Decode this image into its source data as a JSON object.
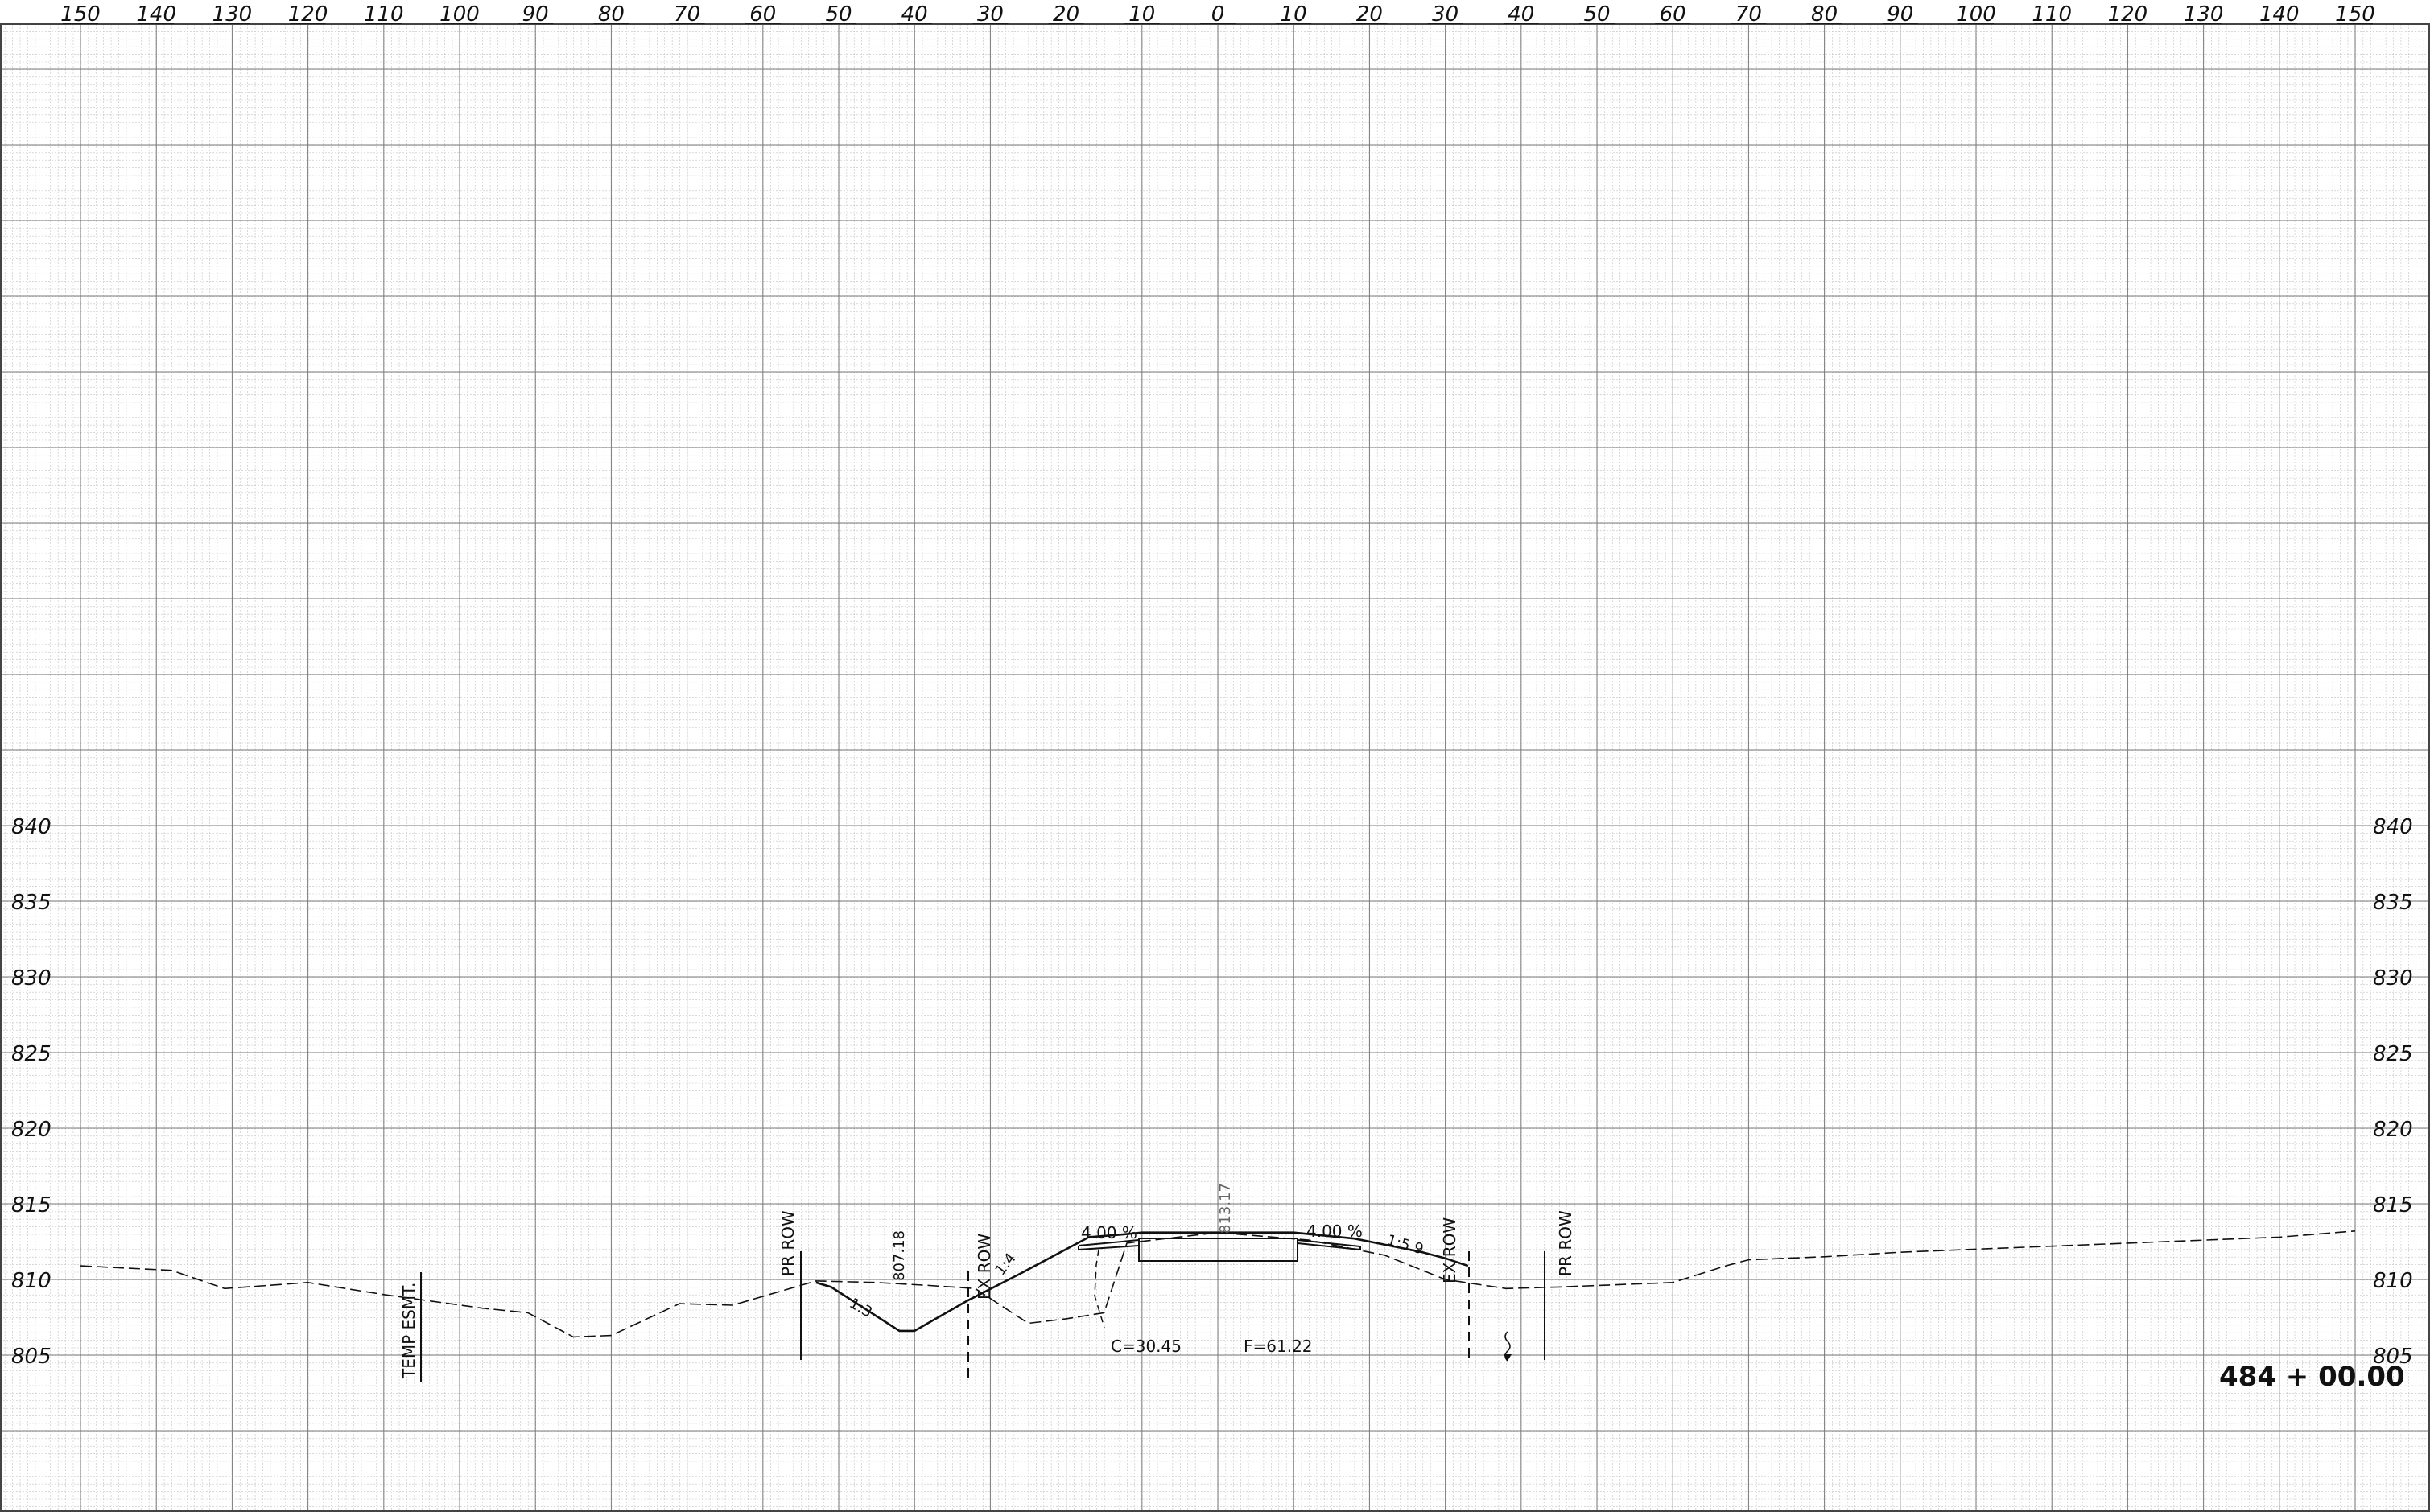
{
  "chart_data": {
    "type": "line",
    "title": "",
    "offset_ticks": [
      "150",
      "140",
      "130",
      "120",
      "110",
      "100",
      "90",
      "80",
      "70",
      "60",
      "50",
      "40",
      "30",
      "20",
      "10",
      "0",
      "10",
      "20",
      "30",
      "40",
      "50",
      "60",
      "70",
      "80",
      "90",
      "100",
      "110",
      "120",
      "130",
      "140",
      "150"
    ],
    "elevation_ticks": [
      "840",
      "835",
      "830",
      "825",
      "820",
      "815",
      "810",
      "805"
    ],
    "xlim": [
      -150,
      150
    ],
    "ylim": [
      801,
      856
    ],
    "series": [
      {
        "style": "dashed",
        "x": [
          -150,
          -138,
          -131,
          -120,
          -110,
          -97,
          -91,
          -85,
          -80,
          -71,
          -64,
          -53,
          -45,
          -38,
          -32,
          -25,
          -20,
          -15,
          -12,
          0,
          12,
          22,
          30,
          38,
          45,
          60,
          67,
          70,
          80,
          90,
          100,
          120,
          140,
          150
        ],
        "y": [
          810.9,
          810.6,
          809.4,
          809.8,
          809.0,
          808.1,
          807.8,
          806.2,
          806.3,
          808.4,
          808.3,
          809.9,
          809.8,
          809.6,
          809.4,
          807.1,
          807.4,
          807.8,
          812.4,
          813.1,
          812.6,
          811.6,
          810.0,
          809.4,
          809.5,
          809.8,
          810.9,
          811.3,
          811.5,
          811.8,
          812.0,
          812.4,
          812.8,
          813.2
        ]
      },
      {
        "style": "solid",
        "x": [
          -53,
          -51,
          -42,
          -40,
          -33,
          -26,
          -17,
          -12,
          -10,
          10,
          18,
          23,
          27,
          30,
          33
        ],
        "y": [
          809.8,
          809.5,
          806.6,
          806.6,
          808.6,
          810.4,
          812.8,
          813.0,
          813.1,
          813.1,
          812.7,
          812.2,
          811.8,
          811.4,
          810.9
        ]
      }
    ],
    "annotations": [
      {
        "text": "TEMP ESMT."
      },
      {
        "text": "PR ROW"
      },
      {
        "text": "807.18"
      },
      {
        "text": "1:3"
      },
      {
        "text": "EX ROW"
      },
      {
        "text": "1:4"
      },
      {
        "text": "4.00 %"
      },
      {
        "text": "813.17"
      },
      {
        "text": "4.00 %"
      },
      {
        "text": "1:5.9"
      },
      {
        "text": "EX ROW"
      },
      {
        "text": "PR ROW"
      },
      {
        "text": "C=30.45"
      },
      {
        "text": "F=61.22"
      }
    ],
    "station": "484 + 00.00"
  },
  "colors": {
    "line": "#111111",
    "grid_major": "#7a7a7a",
    "grid_minor": "#c2c2c2",
    "background": "#ffffff"
  }
}
